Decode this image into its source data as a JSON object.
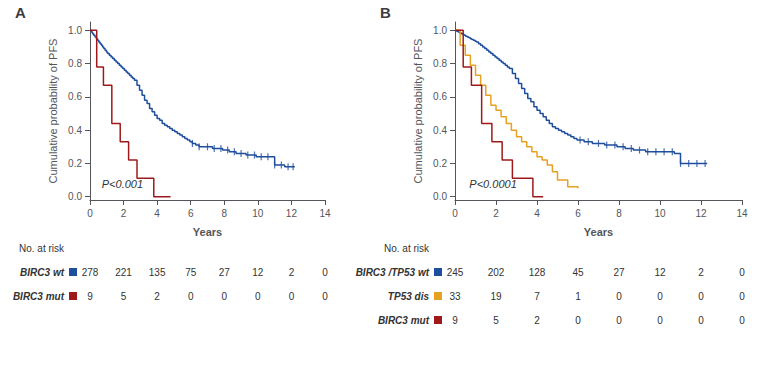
{
  "chart_data": [
    {
      "type": "line",
      "title": "A",
      "annotations": [
        "P<0.001"
      ],
      "xlabel": "Years",
      "ylabel": "Cumulative probability of PFS",
      "xlim": [
        0,
        14
      ],
      "ylim": [
        -0.02,
        1.05
      ],
      "xticks": [
        0,
        2,
        4,
        6,
        8,
        10,
        12,
        14
      ],
      "yticks": [
        {
          "value": 0.0,
          "label": "0.0"
        },
        0.2,
        0.4,
        0.6,
        0.8,
        {
          "value": 1.0,
          "label": "1.0"
        }
      ],
      "grid": false,
      "series": [
        {
          "color": "#1f4e9e",
          "line_style": "step",
          "x": [
            0,
            0.08,
            0.15,
            0.22,
            0.3,
            0.38,
            0.45,
            0.52,
            0.6,
            0.68,
            0.75,
            0.82,
            0.9,
            0.98,
            1.05,
            1.15,
            1.25,
            1.35,
            1.45,
            1.55,
            1.65,
            1.75,
            1.85,
            1.95,
            2.05,
            2.15,
            2.25,
            2.35,
            2.45,
            2.55,
            2.65,
            2.8,
            2.95,
            3.1,
            3.25,
            3.4,
            3.55,
            3.7,
            3.85,
            4.0,
            4.15,
            4.3,
            4.45,
            4.6,
            4.75,
            4.9,
            5.05,
            5.2,
            5.35,
            5.5,
            5.65,
            5.8,
            5.95,
            6.1,
            6.3,
            6.5,
            6.7,
            6.9,
            7.1,
            7.3,
            7.5,
            7.7,
            7.9,
            8.1,
            8.3,
            8.5,
            8.7,
            8.9,
            9.1,
            9.3,
            9.5,
            9.7,
            9.9,
            10.1,
            10.3,
            10.5,
            10.7,
            10.9,
            11.0,
            11.2,
            11.4,
            11.6,
            11.8,
            12.0,
            12.2
          ],
          "values": [
            1.0,
            0.99,
            0.98,
            0.97,
            0.96,
            0.95,
            0.94,
            0.93,
            0.92,
            0.91,
            0.9,
            0.89,
            0.88,
            0.87,
            0.86,
            0.85,
            0.84,
            0.83,
            0.82,
            0.81,
            0.8,
            0.79,
            0.78,
            0.77,
            0.76,
            0.75,
            0.74,
            0.73,
            0.72,
            0.71,
            0.7,
            0.67,
            0.64,
            0.61,
            0.58,
            0.56,
            0.53,
            0.51,
            0.49,
            0.47,
            0.46,
            0.44,
            0.43,
            0.42,
            0.41,
            0.4,
            0.39,
            0.38,
            0.37,
            0.36,
            0.35,
            0.34,
            0.33,
            0.32,
            0.31,
            0.3,
            0.3,
            0.3,
            0.3,
            0.29,
            0.29,
            0.29,
            0.28,
            0.28,
            0.27,
            0.27,
            0.26,
            0.26,
            0.26,
            0.25,
            0.25,
            0.25,
            0.24,
            0.24,
            0.24,
            0.24,
            0.24,
            0.24,
            0.19,
            0.19,
            0.19,
            0.18,
            0.18,
            0.18,
            0.18
          ],
          "censored": {
            "marker": "|",
            "x": [
              6.1,
              6.5,
              7.0,
              7.4,
              7.8,
              8.2,
              8.6,
              9.0,
              9.4,
              9.8,
              10.2,
              10.6,
              11.0,
              11.4,
              11.8,
              12.1
            ],
            "values": [
              0.32,
              0.3,
              0.3,
              0.29,
              0.29,
              0.28,
              0.27,
              0.26,
              0.25,
              0.25,
              0.24,
              0.24,
              0.19,
              0.19,
              0.18,
              0.18
            ]
          }
        },
        {
          "color": "#9e1a1a",
          "line_style": "step",
          "x": [
            0,
            0.4,
            0.8,
            1.3,
            1.8,
            2.3,
            2.8,
            3.3,
            3.8,
            4.3,
            4.8
          ],
          "values": [
            1.0,
            0.78,
            0.67,
            0.44,
            0.33,
            0.22,
            0.11,
            0.11,
            0.0,
            0.0,
            0.0
          ]
        }
      ],
      "at_risk": {
        "header": "No. at risk",
        "x": [
          0,
          2,
          4,
          6,
          8,
          10,
          12,
          14
        ],
        "rows": [
          {
            "label": "BIRC3 wt",
            "color": "#1f4e9e",
            "values": [
              278,
              221,
              135,
              75,
              27,
              12,
              2,
              0
            ]
          },
          {
            "label": "BIRC3 mut",
            "color": "#9e1a1a",
            "values": [
              9,
              5,
              2,
              0,
              0,
              0,
              0,
              0
            ]
          }
        ]
      }
    },
    {
      "type": "line",
      "title": "B",
      "annotations": [
        "P<0.0001"
      ],
      "xlabel": "Years",
      "ylabel": "Cumulative probability of PFS",
      "xlim": [
        0,
        14
      ],
      "ylim": [
        -0.02,
        1.05
      ],
      "xticks": [
        0,
        2,
        4,
        6,
        8,
        10,
        12,
        14
      ],
      "yticks": [
        {
          "value": 0.0,
          "label": "0.0"
        },
        0.2,
        0.4,
        0.6,
        0.8,
        {
          "value": 1.0,
          "label": "1.0"
        }
      ],
      "grid": false,
      "series": [
        {
          "color": "#1f4e9e",
          "line_style": "step",
          "x": [
            0,
            0.08,
            0.15,
            0.22,
            0.3,
            0.38,
            0.45,
            0.52,
            0.6,
            0.68,
            0.75,
            0.82,
            0.9,
            0.98,
            1.05,
            1.15,
            1.25,
            1.35,
            1.45,
            1.55,
            1.65,
            1.75,
            1.85,
            1.95,
            2.05,
            2.15,
            2.25,
            2.35,
            2.45,
            2.55,
            2.65,
            2.8,
            2.95,
            3.1,
            3.25,
            3.4,
            3.55,
            3.7,
            3.85,
            4.0,
            4.15,
            4.3,
            4.45,
            4.6,
            4.75,
            4.9,
            5.05,
            5.2,
            5.35,
            5.5,
            5.65,
            5.8,
            5.95,
            6.1,
            6.3,
            6.5,
            6.7,
            6.9,
            7.1,
            7.3,
            7.5,
            7.7,
            7.9,
            8.1,
            8.3,
            8.5,
            8.7,
            8.9,
            9.1,
            9.3,
            9.5,
            9.7,
            9.9,
            10.1,
            10.3,
            10.5,
            10.7,
            10.9,
            11.0,
            11.2,
            11.4,
            11.6,
            11.8,
            12.0,
            12.3
          ],
          "values": [
            1.0,
            0.995,
            0.99,
            0.985,
            0.98,
            0.975,
            0.97,
            0.965,
            0.96,
            0.955,
            0.95,
            0.945,
            0.94,
            0.935,
            0.93,
            0.92,
            0.91,
            0.9,
            0.89,
            0.88,
            0.87,
            0.86,
            0.85,
            0.84,
            0.83,
            0.82,
            0.81,
            0.8,
            0.79,
            0.78,
            0.77,
            0.74,
            0.71,
            0.68,
            0.65,
            0.62,
            0.59,
            0.57,
            0.54,
            0.52,
            0.5,
            0.48,
            0.46,
            0.44,
            0.42,
            0.41,
            0.4,
            0.39,
            0.38,
            0.37,
            0.36,
            0.35,
            0.34,
            0.34,
            0.33,
            0.33,
            0.32,
            0.32,
            0.32,
            0.31,
            0.31,
            0.31,
            0.3,
            0.3,
            0.29,
            0.29,
            0.28,
            0.28,
            0.28,
            0.27,
            0.27,
            0.27,
            0.27,
            0.27,
            0.27,
            0.27,
            0.26,
            0.26,
            0.2,
            0.2,
            0.2,
            0.2,
            0.2,
            0.2,
            0.2
          ],
          "censored": {
            "marker": "|",
            "x": [
              6.1,
              6.5,
              7.0,
              7.4,
              7.8,
              8.2,
              8.6,
              9.0,
              9.4,
              9.8,
              10.2,
              10.6,
              11.0,
              11.4,
              11.8,
              12.2
            ],
            "values": [
              0.34,
              0.33,
              0.32,
              0.31,
              0.31,
              0.3,
              0.29,
              0.28,
              0.27,
              0.27,
              0.27,
              0.27,
              0.2,
              0.2,
              0.2,
              0.2
            ]
          }
        },
        {
          "color": "#e8a020",
          "line_style": "step",
          "x": [
            0,
            0.25,
            0.5,
            0.75,
            1.0,
            1.25,
            1.5,
            1.75,
            2.0,
            2.25,
            2.5,
            2.75,
            3.0,
            3.25,
            3.5,
            3.75,
            4.0,
            4.25,
            4.5,
            4.75,
            5.0,
            5.5,
            6.0
          ],
          "values": [
            1.0,
            0.91,
            0.85,
            0.79,
            0.73,
            0.67,
            0.61,
            0.55,
            0.52,
            0.48,
            0.44,
            0.4,
            0.36,
            0.33,
            0.3,
            0.27,
            0.24,
            0.22,
            0.19,
            0.15,
            0.1,
            0.06,
            0.05
          ]
        },
        {
          "color": "#9e1a1a",
          "line_style": "step",
          "x": [
            0,
            0.4,
            0.8,
            1.3,
            1.8,
            2.3,
            2.8,
            3.3,
            3.8,
            4.3
          ],
          "values": [
            1.0,
            0.78,
            0.67,
            0.44,
            0.33,
            0.22,
            0.11,
            0.11,
            0.0,
            0.0
          ]
        }
      ],
      "at_risk": {
        "header": "No. at risk",
        "x": [
          0,
          2,
          4,
          6,
          8,
          10,
          12,
          14
        ],
        "rows": [
          {
            "label": "BIRC3 /TP53 wt",
            "color": "#1f4e9e",
            "values": [
              245,
              202,
              128,
              45,
              27,
              12,
              2,
              0
            ]
          },
          {
            "label": "TP53 dis",
            "color": "#e8a020",
            "values": [
              33,
              19,
              7,
              1,
              0,
              0,
              0,
              0
            ]
          },
          {
            "label": "BIRC3 mut",
            "color": "#9e1a1a",
            "values": [
              9,
              5,
              2,
              0,
              0,
              0,
              0,
              0
            ]
          }
        ]
      }
    }
  ]
}
